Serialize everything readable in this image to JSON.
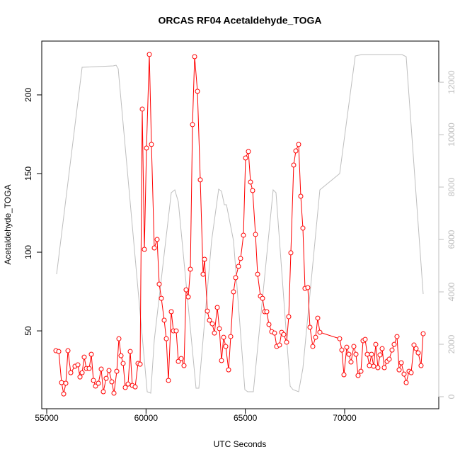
{
  "chart_data": {
    "type": "line",
    "title": "ORCAS RF04 Acetaldehyde_TOGA",
    "xlabel": "UTC Seconds",
    "ylabel": "Acetaldehyde_TOGA",
    "xlim": [
      54750,
      74740
    ],
    "xticks": [
      55000,
      60000,
      65000,
      70000
    ],
    "ylim": [
      0.5,
      234.2
    ],
    "yticks": [
      50,
      100,
      150,
      200
    ],
    "y2lim": [
      -460,
      13570
    ],
    "y2ticks": [
      0,
      2000,
      4000,
      6000,
      8000,
      10000,
      12000
    ],
    "series": [
      {
        "color": "#ff0000",
        "marker": "circle",
        "x": [
          55463,
          55606,
          55748,
          55855,
          55962,
          56069,
          56211,
          56425,
          56568,
          56675,
          56782,
          56888,
          56995,
          57138,
          57245,
          57352,
          57458,
          57601,
          57744,
          57850,
          57993,
          58135,
          58278,
          58385,
          58527,
          58634,
          58741,
          58848,
          58955,
          59097,
          59204,
          59311,
          59454,
          59596,
          59703,
          59810,
          59917,
          60024,
          60166,
          60273,
          60416,
          60558,
          60665,
          60772,
          60915,
          61021,
          61128,
          61271,
          61378,
          61520,
          61627,
          61770,
          61912,
          62019,
          62126,
          62233,
          62340,
          62447,
          62589,
          62732,
          62874,
          62945,
          63088,
          63195,
          63337,
          63444,
          63587,
          63694,
          63801,
          63908,
          64014,
          64157,
          64264,
          64406,
          64513,
          64656,
          64763,
          64905,
          65012,
          65155,
          65261,
          65368,
          65511,
          65618,
          65760,
          65867,
          65974,
          66081,
          66188,
          66330,
          66473,
          66580,
          66722,
          66829,
          66936,
          67079,
          67185,
          67292,
          67435,
          67542,
          67684,
          67791,
          67898,
          68005,
          68147,
          68254,
          68397,
          68539,
          68646,
          68753,
          69751,
          69858,
          69965,
          70107,
          70214,
          70321,
          70463,
          70570,
          70677,
          70820,
          70927,
          71034,
          71140,
          71247,
          71354,
          71461,
          71568,
          71675,
          71782,
          71889,
          71996,
          72138,
          72245,
          72387,
          72494,
          72637,
          72744,
          72851,
          72993,
          73100,
          73243,
          73349,
          73492,
          73599,
          73706,
          73848,
          73955
        ],
        "values": [
          37.4,
          36.9,
          17.1,
          9.9,
          16.7,
          37.4,
          23.4,
          27.5,
          28.4,
          20.7,
          23.4,
          33.3,
          26.1,
          26.1,
          35.1,
          18.5,
          14.9,
          16.7,
          25.7,
          11.3,
          19.8,
          24.8,
          17.6,
          10.4,
          24.3,
          45.0,
          34.2,
          29.3,
          14.0,
          16.2,
          36.9,
          15.3,
          14.4,
          29.3,
          28.8,
          191.0,
          101.8,
          166.2,
          225.7,
          168.5,
          102.7,
          108.1,
          79.7,
          70.7,
          56.8,
          45.0,
          18.5,
          62.2,
          50,
          50,
          30.6,
          32.4,
          27.9,
          76.1,
          71.6,
          89.2,
          181.1,
          224.3,
          202.3,
          146.0,
          86.0,
          95.5,
          62.6,
          56.8,
          54.5,
          48.6,
          64.9,
          51.4,
          31.1,
          45.9,
          40.1,
          25.2,
          46.4,
          74.8,
          83.8,
          91.0,
          96.0,
          110.8,
          159.9,
          164.0,
          144.6,
          139.2,
          111.3,
          86.0,
          72.1,
          70.7,
          62.2,
          62.2,
          54.1,
          49.5,
          48.6,
          40.1,
          41.0,
          49.1,
          47.7,
          42.8,
          59.0,
          99.6,
          155.4,
          164.4,
          168.5,
          135.6,
          115.3,
          77.0,
          77.5,
          52.3,
          40.1,
          45.9,
          58.1,
          49.1,
          45.0,
          37.8,
          22.1,
          39.6,
          35.1,
          30.2,
          40.1,
          35.1,
          21.6,
          24.3,
          43.7,
          44.6,
          35.1,
          27.9,
          35.1,
          27.5,
          41.4,
          26.6,
          34.7,
          38.7,
          26.6,
          30.6,
          32.0,
          37.8,
          41.4,
          46.4,
          25.2,
          29.7,
          22.5,
          17.1,
          24.3,
          23.4,
          41.0,
          38.7,
          36.0,
          27.9,
          48.2
        ]
      },
      {
        "color": "#bebebe",
        "axis": "y2",
        "x": [
          55499,
          56782,
          58349,
          58492,
          58599,
          60059,
          60238,
          60416,
          61271,
          61449,
          61627,
          62518,
          62660,
          63302,
          63658,
          63801,
          63943,
          64050,
          64406,
          64976,
          65119,
          65404,
          66402,
          66544,
          67257,
          67399,
          67684,
          67898,
          68753,
          69751,
          70535,
          70855,
          72886,
          73100,
          73955
        ],
        "values": [
          4676,
          12569,
          12623,
          12650,
          12515,
          189,
          135,
          2162,
          7785,
          7893,
          7433,
          324,
          324,
          5947,
          7920,
          7839,
          7325,
          7325,
          5947,
          270,
          189,
          189,
          7893,
          7785,
          405,
          270,
          189,
          1081,
          7893,
          8514,
          13001,
          13055,
          13055,
          12974,
          3919
        ]
      }
    ]
  }
}
